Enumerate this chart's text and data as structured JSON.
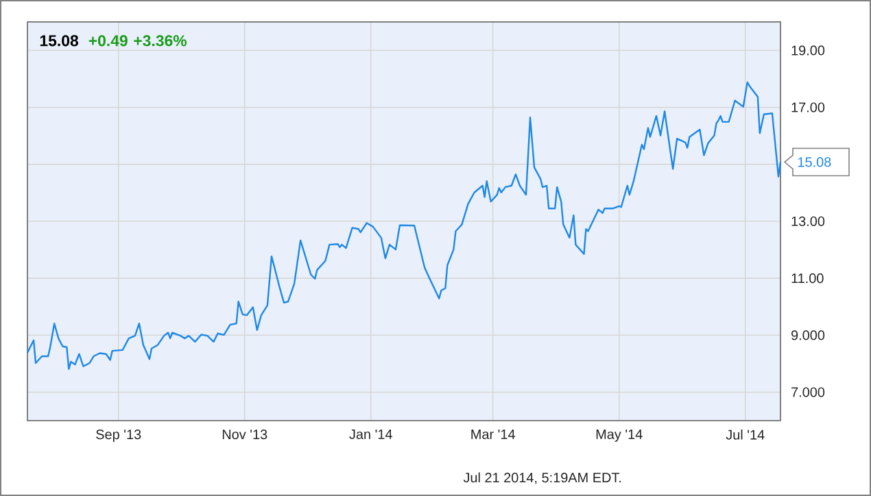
{
  "chart_data": {
    "type": "line",
    "title": "15.08",
    "subtitle": "+0.49 +3.36%",
    "x": [
      "2013-07-19",
      "2013-07-22",
      "2013-07-23",
      "2013-07-26",
      "2013-07-29",
      "2013-07-30",
      "2013-08-01",
      "2013-08-03",
      "2013-08-05",
      "2013-08-07",
      "2013-08-08",
      "2013-08-09",
      "2013-08-11",
      "2013-08-13",
      "2013-08-15",
      "2013-08-18",
      "2013-08-20",
      "2013-08-23",
      "2013-08-26",
      "2013-08-28",
      "2013-08-29",
      "2013-09-03",
      "2013-09-06",
      "2013-09-09",
      "2013-09-11",
      "2013-09-13",
      "2013-09-16",
      "2013-09-17",
      "2013-09-20",
      "2013-09-23",
      "2013-09-25",
      "2013-09-26",
      "2013-09-27",
      "2013-10-01",
      "2013-10-03",
      "2013-10-05",
      "2013-10-08",
      "2013-10-11",
      "2013-10-14",
      "2013-10-17",
      "2013-10-19",
      "2013-10-22",
      "2013-10-25",
      "2013-10-28",
      "2013-10-29",
      "2013-10-31",
      "2013-11-02",
      "2013-11-05",
      "2013-11-07",
      "2013-11-09",
      "2013-11-12",
      "2013-11-14",
      "2013-11-18",
      "2013-11-20",
      "2013-11-22",
      "2013-11-25",
      "2013-11-28",
      "2013-12-03",
      "2013-12-05",
      "2013-12-06",
      "2013-12-10",
      "2013-12-12",
      "2013-12-16",
      "2013-12-17",
      "2013-12-18",
      "2013-12-20",
      "2013-12-23",
      "2013-12-26",
      "2013-12-27",
      "2013-12-30",
      "2014-01-02",
      "2014-01-06",
      "2014-01-08",
      "2014-01-10",
      "2014-01-13",
      "2014-01-15",
      "2014-01-22",
      "2014-01-27",
      "2014-01-29",
      "2014-02-03",
      "2014-02-04",
      "2014-02-06",
      "2014-02-07",
      "2014-02-10",
      "2014-02-11",
      "2014-02-14",
      "2014-02-17",
      "2014-02-20",
      "2014-02-24",
      "2014-02-25",
      "2014-02-26",
      "2014-02-28",
      "2014-03-03",
      "2014-03-04",
      "2014-03-05",
      "2014-03-07",
      "2014-03-10",
      "2014-03-12",
      "2014-03-14",
      "2014-03-17",
      "2014-03-19",
      "2014-03-21",
      "2014-03-24",
      "2014-03-25",
      "2014-03-27",
      "2014-03-28",
      "2014-03-31",
      "2014-04-01",
      "2014-04-03",
      "2014-04-04",
      "2014-04-07",
      "2014-04-09",
      "2014-04-10",
      "2014-04-14",
      "2014-04-15",
      "2014-04-16",
      "2014-04-21",
      "2014-04-23",
      "2014-04-24",
      "2014-04-28",
      "2014-05-01",
      "2014-05-02",
      "2014-05-05",
      "2014-05-06",
      "2014-05-08",
      "2014-05-12",
      "2014-05-13",
      "2014-05-15",
      "2014-05-16",
      "2014-05-19",
      "2014-05-21",
      "2014-05-23",
      "2014-05-27",
      "2014-05-29",
      "2014-06-02",
      "2014-06-03",
      "2014-06-04",
      "2014-06-09",
      "2014-06-11",
      "2014-06-13",
      "2014-06-16",
      "2014-06-17",
      "2014-06-18",
      "2014-06-19",
      "2014-06-20",
      "2014-06-23",
      "2014-06-26",
      "2014-06-30",
      "2014-07-02",
      "2014-07-03",
      "2014-07-07",
      "2014-07-08",
      "2014-07-10",
      "2014-07-14",
      "2014-07-17",
      "2014-07-18"
    ],
    "values": [
      8.39,
      8.82,
      8.02,
      8.26,
      8.26,
      8.58,
      9.41,
      8.89,
      8.61,
      8.58,
      7.81,
      8.07,
      7.97,
      8.34,
      7.91,
      8.02,
      8.26,
      8.37,
      8.34,
      8.13,
      8.45,
      8.48,
      8.89,
      8.98,
      9.41,
      8.66,
      8.16,
      8.53,
      8.66,
      8.98,
      9.09,
      8.89,
      9.09,
      8.98,
      8.89,
      8.98,
      8.77,
      9.02,
      8.98,
      8.77,
      9.06,
      9.01,
      9.37,
      9.41,
      10.18,
      9.73,
      9.7,
      9.98,
      9.18,
      9.7,
      10.05,
      11.77,
      10.65,
      10.14,
      10.18,
      10.81,
      12.33,
      11.13,
      10.98,
      11.29,
      11.61,
      12.18,
      12.2,
      12.09,
      12.18,
      12.06,
      12.77,
      12.73,
      12.61,
      12.94,
      12.81,
      12.42,
      11.7,
      12.18,
      12.01,
      12.86,
      12.85,
      11.37,
      11.05,
      10.29,
      10.57,
      10.65,
      11.46,
      12.01,
      12.65,
      12.89,
      13.61,
      14.01,
      14.25,
      13.85,
      14.41,
      13.69,
      13.93,
      14.17,
      14.01,
      14.2,
      14.25,
      14.65,
      14.25,
      13.93,
      16.65,
      14.89,
      14.49,
      14.2,
      14.25,
      13.45,
      13.45,
      14.2,
      13.69,
      12.89,
      12.42,
      13.21,
      12.18,
      11.85,
      12.73,
      12.65,
      13.41,
      13.29,
      13.45,
      13.45,
      13.53,
      13.5,
      14.25,
      13.93,
      14.41,
      15.69,
      15.53,
      16.28,
      15.96,
      16.7,
      16.01,
      16.86,
      14.84,
      15.9,
      15.77,
      15.58,
      15.96,
      16.22,
      15.32,
      15.74,
      16.01,
      16.44,
      16.54,
      16.7,
      16.49,
      16.49,
      17.24,
      17.02,
      17.88,
      17.75,
      17.37,
      16.09,
      16.76,
      16.79,
      14.57,
      15.08
    ],
    "color": "#1e88e5",
    "xlim": [
      "2013-07-19",
      "2014-07-18"
    ],
    "xticks": [
      {
        "value": "2013-09-01",
        "label": "Sep '13"
      },
      {
        "value": "2013-11-01",
        "label": "Nov '13"
      },
      {
        "value": "2014-01-01",
        "label": "Jan '14"
      },
      {
        "value": "2014-03-01",
        "label": "Mar '14"
      },
      {
        "value": "2014-05-01",
        "label": "May '14"
      },
      {
        "value": "2014-07-01",
        "label": "Jul '14"
      }
    ],
    "ylim": [
      6,
      20
    ],
    "yticks": [
      {
        "value": 7,
        "label": "7.000"
      },
      {
        "value": 9,
        "label": "9.000"
      },
      {
        "value": 11,
        "label": "11.00"
      },
      {
        "value": 13,
        "label": "13.00"
      },
      {
        "value": 15,
        "label": null
      },
      {
        "value": 17,
        "label": "17.00"
      },
      {
        "value": 19,
        "label": "19.00"
      }
    ],
    "grid": true,
    "annotations": [
      {
        "text": "15.08",
        "x": "2014-07-18",
        "y": 15.08
      },
      "Jul 21 2014, 5:19AM EDT."
    ]
  }
}
